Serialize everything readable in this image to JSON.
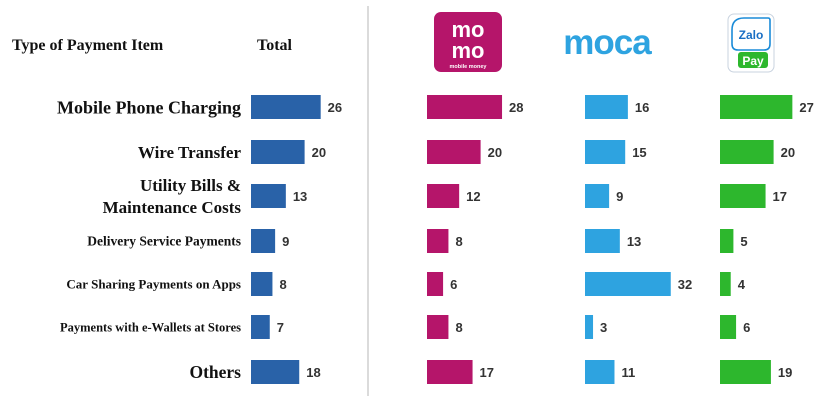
{
  "chart_data": {
    "type": "bar",
    "orientation": "horizontal",
    "header": {
      "category_column": "Type of Payment Item",
      "total_column": "Total"
    },
    "categories": [
      [
        "Mobile Phone Charging"
      ],
      [
        "Wire Transfer"
      ],
      [
        "Utility Bills &",
        "Maintenance Costs"
      ],
      [
        "Delivery Service Payments"
      ],
      [
        "Car Sharing Payments on Apps"
      ],
      [
        "Payments with e-Wallets at Stores"
      ],
      [
        "Others"
      ]
    ],
    "series": [
      {
        "name": "Total",
        "color": "#2962a8",
        "values": [
          26,
          20,
          13,
          9,
          8,
          7,
          18
        ]
      },
      {
        "name": "momo",
        "color": "#b5156a",
        "values": [
          28,
          20,
          12,
          8,
          6,
          8,
          17
        ],
        "logo": {
          "icon": "momo-logo",
          "line1": "mo",
          "line2": "mo",
          "tagline": "mobile money"
        }
      },
      {
        "name": "moca",
        "color": "#2ea3e0",
        "values": [
          16,
          15,
          9,
          13,
          32,
          3,
          11
        ],
        "logo": {
          "icon": "moca-logo",
          "text": "moca"
        }
      },
      {
        "name": "ZaloPay",
        "color": "#2db72d",
        "values": [
          27,
          20,
          17,
          5,
          4,
          6,
          19
        ],
        "logo": {
          "icon": "zalopay-logo",
          "line1": "Zalo",
          "line2": "Pay"
        }
      }
    ],
    "grid": false,
    "legend": "none"
  }
}
